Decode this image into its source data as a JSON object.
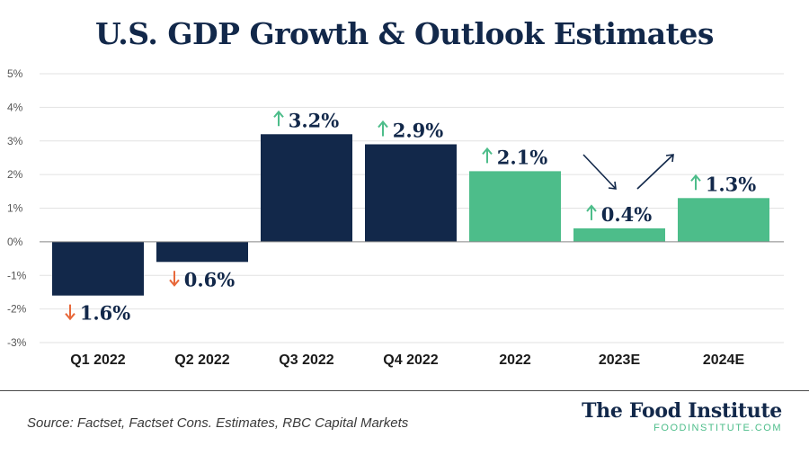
{
  "title": "U.S. GDP Growth & Outlook Estimates",
  "source": "Source: Factset, Factset Cons. Estimates, RBC Capital Markets",
  "brand": {
    "name": "The Food Institute",
    "url": "FOODINSTITUTE.COM"
  },
  "colors": {
    "actual": "#12284a",
    "estimate": "#4dbd8a",
    "up_arrow": "#4dbd8a",
    "down_arrow": "#e8683a"
  },
  "chart_data": {
    "type": "bar",
    "title": "U.S. GDP Growth & Outlook Estimates",
    "xlabel": "",
    "ylabel": "",
    "ylim": [
      -3,
      5
    ],
    "y_ticks": [
      "-3%",
      "-2%",
      "-1%",
      "0%",
      "1%",
      "2%",
      "3%",
      "4%",
      "5%"
    ],
    "grid": true,
    "categories": [
      "Q1 2022",
      "Q2 2022",
      "Q3 2022",
      "Q4 2022",
      "2022",
      "2023E",
      "2024E"
    ],
    "values": [
      -1.6,
      -0.6,
      3.2,
      2.9,
      2.1,
      0.4,
      1.3
    ],
    "data_labels": [
      "1.6%",
      "0.6%",
      "3.2%",
      "2.9%",
      "2.1%",
      "0.4%",
      "1.3%"
    ],
    "directions": [
      "down",
      "down",
      "up",
      "up",
      "up",
      "up",
      "up"
    ],
    "kinds": [
      "actual",
      "actual",
      "actual",
      "actual",
      "estimate",
      "estimate",
      "estimate"
    ]
  }
}
